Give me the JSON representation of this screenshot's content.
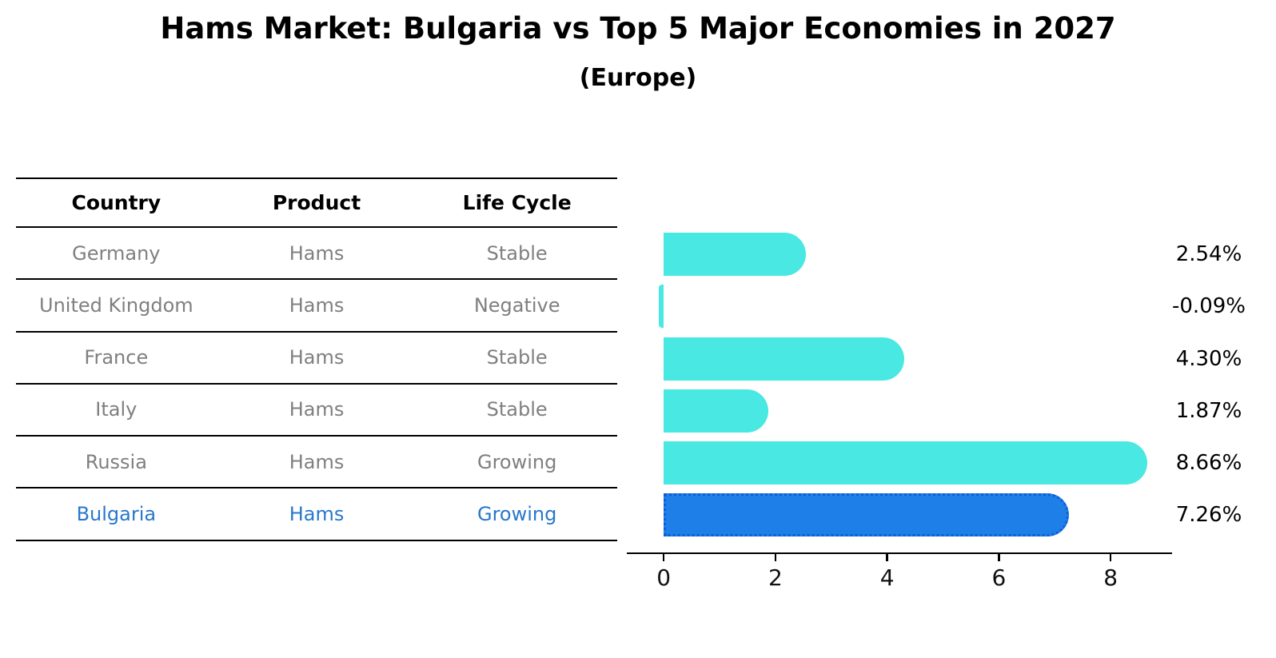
{
  "title": "Hams Market: Bulgaria vs Top 5 Major Economies in 2027",
  "subtitle": "(Europe)",
  "table": {
    "headers": [
      "Country",
      "Product",
      "Life Cycle"
    ],
    "rows": [
      {
        "country": "Germany",
        "product": "Hams",
        "life_cycle": "Stable",
        "highlight": false
      },
      {
        "country": "United Kingdom",
        "product": "Hams",
        "life_cycle": "Negative",
        "highlight": false
      },
      {
        "country": "France",
        "product": "Hams",
        "life_cycle": "Stable",
        "highlight": false
      },
      {
        "country": "Italy",
        "product": "Hams",
        "life_cycle": "Stable",
        "highlight": false
      },
      {
        "country": "Russia",
        "product": "Hams",
        "life_cycle": "Growing",
        "highlight": false
      },
      {
        "country": "Bulgaria",
        "product": "Hams",
        "life_cycle": "Growing",
        "highlight": true
      }
    ]
  },
  "chart_data": {
    "type": "bar",
    "orientation": "horizontal",
    "title": "Hams Market: Bulgaria vs Top 5 Major Economies in 2027",
    "subtitle": "(Europe)",
    "categories": [
      "Germany",
      "United Kingdom",
      "France",
      "Italy",
      "Russia",
      "Bulgaria"
    ],
    "values": [
      2.54,
      -0.09,
      4.3,
      1.87,
      8.66,
      7.26
    ],
    "labels": [
      "2.54%",
      "-0.09%",
      "4.30%",
      "1.87%",
      "8.66%",
      "7.26%"
    ],
    "xticks": [
      0,
      2,
      4,
      6,
      8
    ],
    "xtick_labels": [
      "0",
      "2",
      "4",
      "6",
      "8"
    ],
    "xlim": [
      -0.66,
      9.1
    ],
    "grid": false,
    "legend": "none",
    "bar_color": "#4AE8E2",
    "highlight_color": "#1E7FE8",
    "highlight_border": "#0D5ED6",
    "highlight_index": 5
  },
  "colors": {
    "row_text": "#7f7f7f",
    "highlight_text": "#2878cc",
    "axis": "#000000",
    "background": "#ffffff"
  }
}
